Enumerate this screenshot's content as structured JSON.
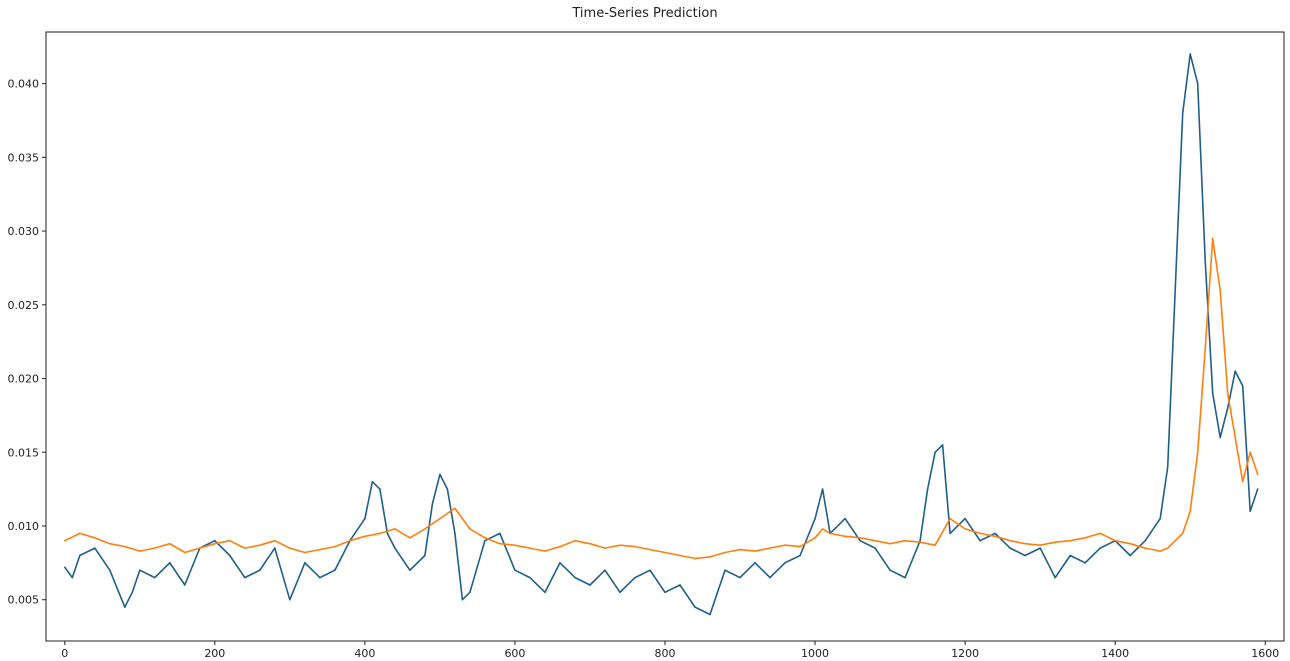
{
  "chart_data": {
    "type": "line",
    "title": "Time-Series Prediction",
    "xlabel": "",
    "ylabel": "",
    "xlim": [
      -25,
      1625
    ],
    "ylim": [
      0.0022,
      0.0435
    ],
    "x_ticks": [
      0,
      200,
      400,
      600,
      800,
      1000,
      1200,
      1400,
      1600
    ],
    "y_ticks": [
      0.005,
      0.01,
      0.015,
      0.02,
      0.025,
      0.03,
      0.035,
      0.04
    ],
    "grid": false,
    "legend": "none",
    "series": [
      {
        "color": "#1f5f8b",
        "x": [
          0,
          10,
          20,
          40,
          60,
          80,
          90,
          100,
          120,
          140,
          160,
          180,
          200,
          220,
          240,
          260,
          280,
          300,
          320,
          340,
          360,
          380,
          400,
          410,
          420,
          430,
          440,
          460,
          480,
          490,
          500,
          510,
          520,
          530,
          540,
          560,
          580,
          600,
          620,
          640,
          660,
          680,
          700,
          720,
          740,
          760,
          780,
          800,
          820,
          840,
          860,
          880,
          900,
          920,
          940,
          960,
          980,
          1000,
          1010,
          1020,
          1040,
          1060,
          1080,
          1100,
          1120,
          1140,
          1150,
          1160,
          1170,
          1180,
          1200,
          1220,
          1240,
          1260,
          1280,
          1300,
          1320,
          1340,
          1360,
          1380,
          1400,
          1420,
          1440,
          1460,
          1470,
          1480,
          1490,
          1500,
          1510,
          1520,
          1530,
          1540,
          1550,
          1560,
          1570,
          1580,
          1590
        ],
        "y": [
          0.0072,
          0.0065,
          0.008,
          0.0085,
          0.007,
          0.0045,
          0.0055,
          0.007,
          0.0065,
          0.0075,
          0.006,
          0.0085,
          0.009,
          0.008,
          0.0065,
          0.007,
          0.0085,
          0.005,
          0.0075,
          0.0065,
          0.007,
          0.009,
          0.0105,
          0.013,
          0.0125,
          0.0095,
          0.0085,
          0.007,
          0.008,
          0.0115,
          0.0135,
          0.0125,
          0.0095,
          0.005,
          0.0055,
          0.009,
          0.0095,
          0.007,
          0.0065,
          0.0055,
          0.0075,
          0.0065,
          0.006,
          0.007,
          0.0055,
          0.0065,
          0.007,
          0.0055,
          0.006,
          0.0045,
          0.004,
          0.007,
          0.0065,
          0.0075,
          0.0065,
          0.0075,
          0.008,
          0.0105,
          0.0125,
          0.0095,
          0.0105,
          0.009,
          0.0085,
          0.007,
          0.0065,
          0.009,
          0.0125,
          0.015,
          0.0155,
          0.0095,
          0.0105,
          0.009,
          0.0095,
          0.0085,
          0.008,
          0.0085,
          0.0065,
          0.008,
          0.0075,
          0.0085,
          0.009,
          0.008,
          0.009,
          0.0105,
          0.014,
          0.026,
          0.038,
          0.042,
          0.04,
          0.028,
          0.019,
          0.016,
          0.018,
          0.0205,
          0.0195,
          0.011,
          0.0125
        ]
      },
      {
        "color": "#ff7f0e",
        "x": [
          0,
          20,
          40,
          60,
          80,
          100,
          120,
          140,
          160,
          180,
          200,
          220,
          240,
          260,
          280,
          300,
          320,
          340,
          360,
          380,
          400,
          420,
          440,
          460,
          480,
          500,
          520,
          530,
          540,
          560,
          580,
          600,
          620,
          640,
          660,
          680,
          700,
          720,
          740,
          760,
          780,
          800,
          820,
          840,
          860,
          880,
          900,
          920,
          940,
          960,
          980,
          1000,
          1010,
          1020,
          1040,
          1060,
          1080,
          1100,
          1120,
          1140,
          1160,
          1180,
          1200,
          1220,
          1240,
          1260,
          1280,
          1300,
          1320,
          1340,
          1360,
          1380,
          1400,
          1420,
          1440,
          1460,
          1470,
          1480,
          1490,
          1500,
          1510,
          1520,
          1530,
          1540,
          1550,
          1560,
          1570,
          1580,
          1590
        ],
        "y": [
          0.009,
          0.0095,
          0.0092,
          0.0088,
          0.0086,
          0.0083,
          0.0085,
          0.0088,
          0.0082,
          0.0085,
          0.0088,
          0.009,
          0.0085,
          0.0087,
          0.009,
          0.0085,
          0.0082,
          0.0084,
          0.0086,
          0.009,
          0.0093,
          0.0095,
          0.0098,
          0.0092,
          0.0098,
          0.0105,
          0.0112,
          0.0105,
          0.0098,
          0.0092,
          0.0088,
          0.0087,
          0.0085,
          0.0083,
          0.0086,
          0.009,
          0.0088,
          0.0085,
          0.0087,
          0.0086,
          0.0084,
          0.0082,
          0.008,
          0.0078,
          0.0079,
          0.0082,
          0.0084,
          0.0083,
          0.0085,
          0.0087,
          0.0086,
          0.0092,
          0.0098,
          0.0095,
          0.0093,
          0.0092,
          0.009,
          0.0088,
          0.009,
          0.0089,
          0.0087,
          0.0105,
          0.0098,
          0.0095,
          0.0093,
          0.009,
          0.0088,
          0.0087,
          0.0089,
          0.009,
          0.0092,
          0.0095,
          0.009,
          0.0088,
          0.0085,
          0.0083,
          0.0085,
          0.009,
          0.0095,
          0.011,
          0.015,
          0.022,
          0.0295,
          0.026,
          0.019,
          0.016,
          0.013,
          0.015,
          0.0135
        ]
      }
    ]
  }
}
